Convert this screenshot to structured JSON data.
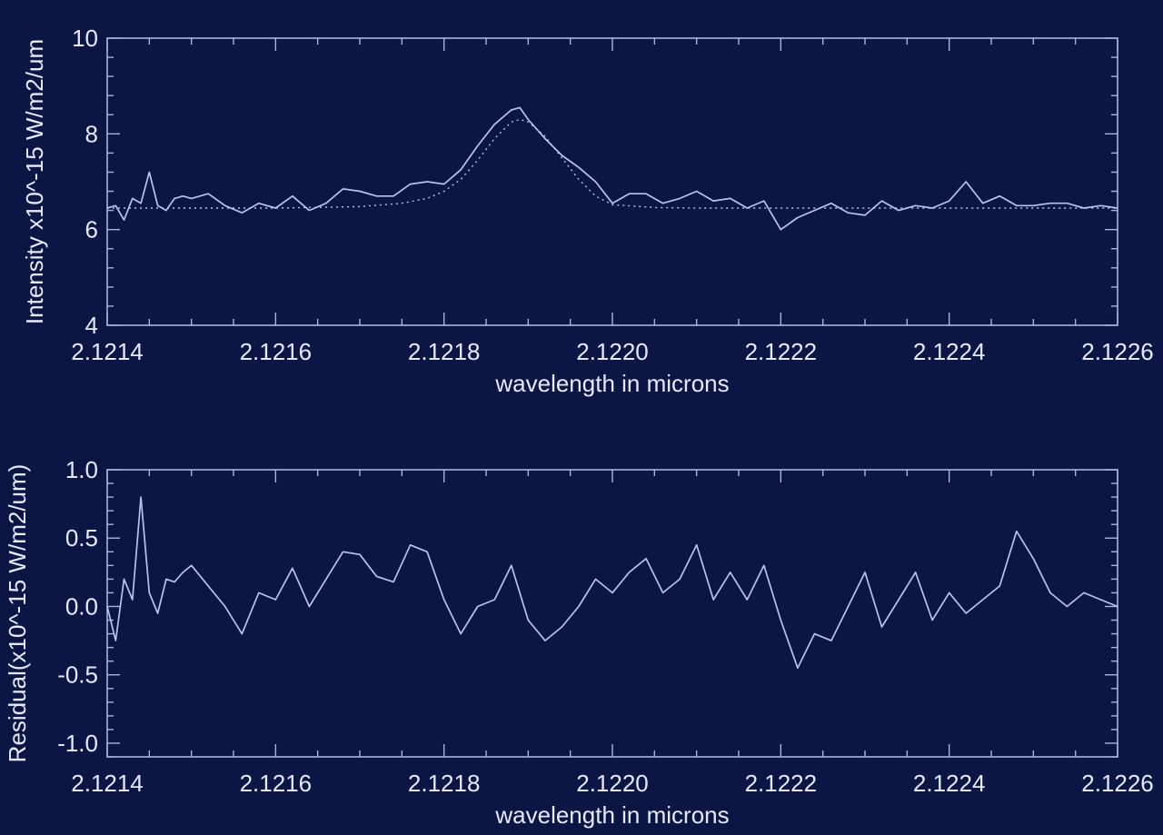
{
  "chart_data": [
    {
      "type": "line",
      "xlabel": "wavelength in microns",
      "ylabel": "Intensity x10^-15 W/m2/um",
      "xlim": [
        2.1214,
        2.1226
      ],
      "ylim": [
        4,
        10
      ],
      "xticks": [
        "2.1214",
        "2.1216",
        "2.1218",
        "2.1220",
        "2.1222",
        "2.1224",
        "2.1226"
      ],
      "yticks": [
        "4",
        "6",
        "8",
        "10"
      ],
      "series": [
        {
          "style": "solid",
          "x": [
            2.1214,
            2.12141,
            2.12142,
            2.12143,
            2.12144,
            2.12145,
            2.12146,
            2.12147,
            2.12148,
            2.12149,
            2.1215,
            2.12152,
            2.12154,
            2.12156,
            2.12158,
            2.1216,
            2.12162,
            2.12164,
            2.12166,
            2.12168,
            2.1217,
            2.12172,
            2.12174,
            2.12176,
            2.12178,
            2.1218,
            2.12182,
            2.12184,
            2.12186,
            2.12188,
            2.12189,
            2.1219,
            2.12192,
            2.12194,
            2.12196,
            2.12198,
            2.122,
            2.12202,
            2.12204,
            2.12206,
            2.12208,
            2.1221,
            2.12212,
            2.12214,
            2.12216,
            2.12218,
            2.1222,
            2.12222,
            2.12224,
            2.12226,
            2.12228,
            2.1223,
            2.12232,
            2.12234,
            2.12236,
            2.12238,
            2.1224,
            2.12242,
            2.12244,
            2.12246,
            2.12248,
            2.1225,
            2.12252,
            2.12254,
            2.12256,
            2.12258,
            2.1226
          ],
          "y": [
            6.45,
            6.5,
            6.2,
            6.65,
            6.55,
            7.2,
            6.5,
            6.4,
            6.65,
            6.7,
            6.65,
            6.75,
            6.5,
            6.35,
            6.55,
            6.45,
            6.7,
            6.4,
            6.55,
            6.85,
            6.8,
            6.7,
            6.7,
            6.95,
            7.0,
            6.95,
            7.25,
            7.75,
            8.2,
            8.5,
            8.55,
            8.3,
            7.9,
            7.55,
            7.3,
            7.0,
            6.55,
            6.75,
            6.75,
            6.55,
            6.65,
            6.8,
            6.6,
            6.65,
            6.45,
            6.6,
            6.0,
            6.25,
            6.4,
            6.55,
            6.35,
            6.3,
            6.6,
            6.4,
            6.5,
            6.45,
            6.6,
            7.0,
            6.55,
            6.7,
            6.5,
            6.5,
            6.55,
            6.55,
            6.45,
            6.5,
            6.45
          ]
        },
        {
          "style": "dotted",
          "x": [
            2.1214,
            2.1215,
            2.1216,
            2.1217,
            2.12175,
            2.12178,
            2.1218,
            2.12182,
            2.12184,
            2.12186,
            2.12188,
            2.12189,
            2.1219,
            2.12192,
            2.12194,
            2.12196,
            2.12198,
            2.122,
            2.12205,
            2.1221,
            2.1222,
            2.1224,
            2.1226
          ],
          "y": [
            6.45,
            6.45,
            6.45,
            6.48,
            6.55,
            6.65,
            6.8,
            7.05,
            7.45,
            7.9,
            8.25,
            8.3,
            8.25,
            7.95,
            7.5,
            7.05,
            6.7,
            6.52,
            6.46,
            6.45,
            6.45,
            6.45,
            6.45
          ]
        }
      ]
    },
    {
      "type": "line",
      "xlabel": "wavelength in microns",
      "ylabel": "Residual(x10^-15 W/m2/um)",
      "xlim": [
        2.1214,
        2.1226
      ],
      "ylim": [
        -1.1,
        1.0
      ],
      "xticks": [
        "2.1214",
        "2.1216",
        "2.1218",
        "2.1220",
        "2.1222",
        "2.1224",
        "2.1226"
      ],
      "yticks": [
        "1.0",
        "0.5",
        "0.0",
        "-0.5",
        "-1.0"
      ],
      "yticks_values": [
        1.0,
        0.5,
        0.0,
        -0.5,
        -1.0
      ],
      "series": [
        {
          "style": "solid",
          "x": [
            2.1214,
            2.12141,
            2.12142,
            2.12143,
            2.12144,
            2.12145,
            2.12146,
            2.12147,
            2.12148,
            2.12149,
            2.1215,
            2.12152,
            2.12154,
            2.12156,
            2.12158,
            2.1216,
            2.12162,
            2.12164,
            2.12166,
            2.12168,
            2.1217,
            2.12172,
            2.12174,
            2.12176,
            2.12178,
            2.1218,
            2.12182,
            2.12184,
            2.12186,
            2.12188,
            2.1219,
            2.12192,
            2.12194,
            2.12196,
            2.12198,
            2.122,
            2.12202,
            2.12204,
            2.12206,
            2.12208,
            2.1221,
            2.12212,
            2.12214,
            2.12216,
            2.12218,
            2.1222,
            2.12222,
            2.12224,
            2.12226,
            2.12228,
            2.1223,
            2.12232,
            2.12234,
            2.12236,
            2.12238,
            2.1224,
            2.12242,
            2.12244,
            2.12246,
            2.12248,
            2.1225,
            2.12252,
            2.12254,
            2.12256,
            2.12258,
            2.1226
          ],
          "y": [
            0.0,
            -0.25,
            0.2,
            0.05,
            0.8,
            0.1,
            -0.05,
            0.2,
            0.18,
            0.25,
            0.3,
            0.15,
            0.0,
            -0.2,
            0.1,
            0.05,
            0.28,
            0.0,
            0.2,
            0.4,
            0.38,
            0.22,
            0.18,
            0.45,
            0.4,
            0.05,
            -0.2,
            0.0,
            0.05,
            0.3,
            -0.1,
            -0.25,
            -0.15,
            0.0,
            0.2,
            0.1,
            0.25,
            0.35,
            0.1,
            0.2,
            0.45,
            0.05,
            0.25,
            0.05,
            0.3,
            -0.1,
            -0.45,
            -0.2,
            -0.25,
            0.0,
            0.25,
            -0.15,
            0.05,
            0.25,
            -0.1,
            0.1,
            -0.05,
            0.05,
            0.15,
            0.55,
            0.35,
            0.1,
            0.0,
            0.1,
            0.05,
            0.0
          ]
        }
      ]
    }
  ]
}
